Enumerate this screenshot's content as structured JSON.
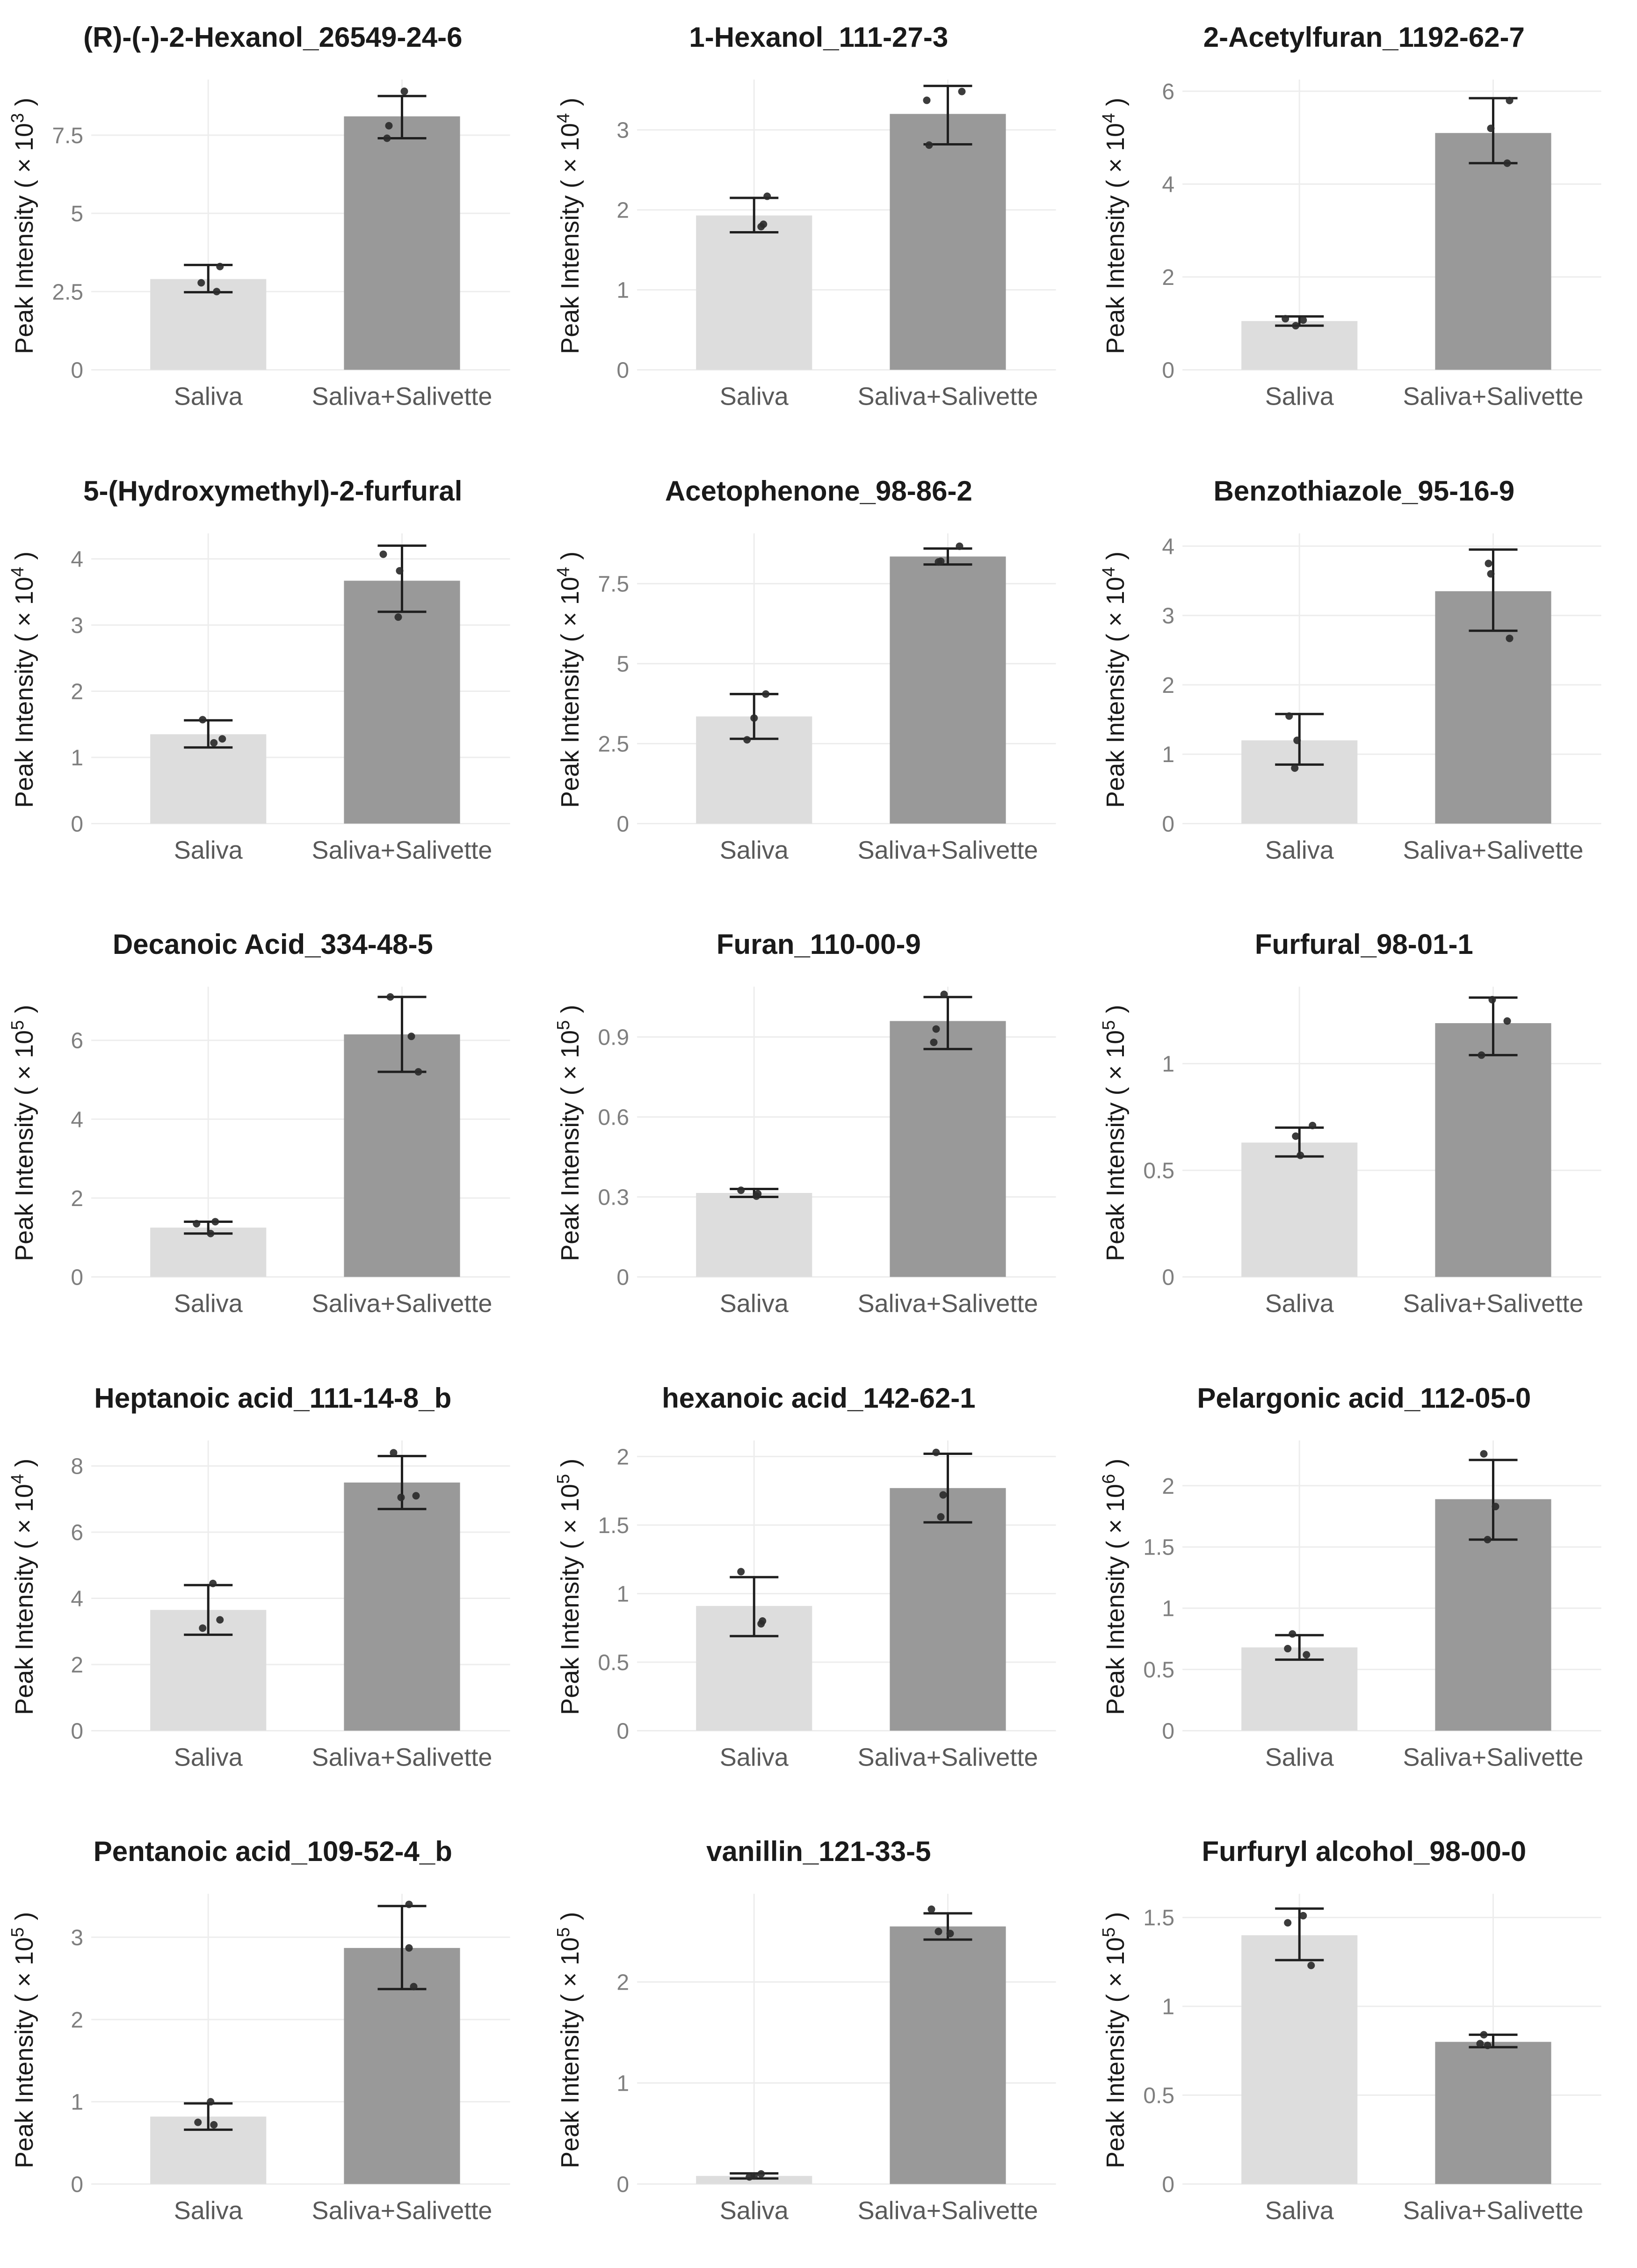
{
  "page": {
    "background": "#ffffff"
  },
  "style": {
    "bar_light": "#dddddd",
    "bar_dark": "#999999",
    "gridline": "#ededed",
    "tick_text": "#7f7f7f",
    "xlabel_text": "#595959",
    "title_text": "#1a1a1a",
    "error_color": "#1f1f1f",
    "point_color": "#2b2b2b"
  },
  "ylabel_prefix": "Peak Intensity ( × 10",
  "ylabel_suffix": " )",
  "chart_data": [
    {
      "type": "bar",
      "title": "(R)-(-)-2-Hexanol_26549-24-6",
      "exponent": "3",
      "ylim": [
        0,
        9.2
      ],
      "yticks": [
        0,
        2.5,
        5,
        7.5
      ],
      "ytick_labels": [
        "0",
        "2.5",
        "5",
        "7.5"
      ],
      "categories": [
        "Saliva",
        "Saliva+Salivette"
      ],
      "series": [
        {
          "name": "Saliva",
          "mean": 2.9,
          "err": [
            2.48,
            3.35
          ],
          "points": [
            [
              -15,
              2.78
            ],
            [
              25,
              3.3
            ],
            [
              18,
              2.5
            ]
          ]
        },
        {
          "name": "Saliva+Salivette",
          "mean": 8.1,
          "err": [
            7.4,
            8.75
          ],
          "points": [
            [
              5,
              8.9
            ],
            [
              -28,
              7.8
            ],
            [
              -32,
              7.4
            ]
          ]
        }
      ]
    },
    {
      "type": "bar",
      "title": "1-Hexanol_111-27-3",
      "exponent": "4",
      "ylim": [
        0,
        3.6
      ],
      "yticks": [
        0,
        1,
        2,
        3
      ],
      "ytick_labels": [
        "0",
        "1",
        "2",
        "3"
      ],
      "categories": [
        "Saliva",
        "Saliva+Salivette"
      ],
      "series": [
        {
          "name": "Saliva",
          "mean": 1.93,
          "err": [
            1.72,
            2.15
          ],
          "points": [
            [
              28,
              2.17
            ],
            [
              20,
              1.82
            ],
            [
              15,
              1.79
            ]
          ]
        },
        {
          "name": "Saliva+Salivette",
          "mean": 3.2,
          "err": [
            2.82,
            3.55
          ],
          "points": [
            [
              -45,
              3.37
            ],
            [
              30,
              3.48
            ],
            [
              -40,
              2.81
            ]
          ]
        }
      ]
    },
    {
      "type": "bar",
      "title": "2-Acetylfuran_1192-62-7",
      "exponent": "4",
      "ylim": [
        0,
        6.2
      ],
      "yticks": [
        0,
        2,
        4,
        6
      ],
      "ytick_labels": [
        "0",
        "2",
        "4",
        "6"
      ],
      "categories": [
        "Saliva",
        "Saliva+Salivette"
      ],
      "series": [
        {
          "name": "Saliva",
          "mean": 1.05,
          "err": [
            0.95,
            1.15
          ],
          "points": [
            [
              -30,
              1.1
            ],
            [
              8,
              1.07
            ],
            [
              -8,
              0.95
            ]
          ]
        },
        {
          "name": "Saliva+Salivette",
          "mean": 5.1,
          "err": [
            4.45,
            5.85
          ],
          "points": [
            [
              35,
              5.8
            ],
            [
              -5,
              5.2
            ],
            [
              30,
              4.45
            ]
          ]
        }
      ]
    },
    {
      "type": "bar",
      "title": "5-(Hydroxymethyl)-2-furfural",
      "exponent": "4",
      "ylim": [
        0,
        4.35
      ],
      "yticks": [
        0,
        1,
        2,
        3,
        4
      ],
      "ytick_labels": [
        "0",
        "1",
        "2",
        "3",
        "4"
      ],
      "categories": [
        "Saliva",
        "Saliva+Salivette"
      ],
      "series": [
        {
          "name": "Saliva",
          "mean": 1.35,
          "err": [
            1.15,
            1.56
          ],
          "points": [
            [
              -12,
              1.57
            ],
            [
              12,
              1.22
            ],
            [
              30,
              1.28
            ]
          ]
        },
        {
          "name": "Saliva+Salivette",
          "mean": 3.67,
          "err": [
            3.2,
            4.2
          ],
          "points": [
            [
              -40,
              4.07
            ],
            [
              -5,
              3.82
            ],
            [
              -8,
              3.12
            ]
          ]
        }
      ]
    },
    {
      "type": "bar",
      "title": "Acetophenone_98-86-2",
      "exponent": "4",
      "ylim": [
        0,
        9.0
      ],
      "yticks": [
        0,
        2.5,
        5,
        7.5
      ],
      "ytick_labels": [
        "0",
        "2.5",
        "5",
        "7.5"
      ],
      "categories": [
        "Saliva",
        "Saliva+Salivette"
      ],
      "series": [
        {
          "name": "Saliva",
          "mean": 3.35,
          "err": [
            2.65,
            4.05
          ],
          "points": [
            [
              25,
              4.05
            ],
            [
              0,
              3.3
            ],
            [
              -15,
              2.62
            ]
          ]
        },
        {
          "name": "Saliva+Salivette",
          "mean": 8.35,
          "err": [
            8.1,
            8.6
          ],
          "points": [
            [
              25,
              8.67
            ],
            [
              -15,
              8.2
            ],
            [
              -20,
              8.18
            ]
          ]
        }
      ]
    },
    {
      "type": "bar",
      "title": "Benzothiazole_95-16-9",
      "exponent": "4",
      "ylim": [
        0,
        4.15
      ],
      "yticks": [
        0,
        1,
        2,
        3,
        4
      ],
      "ytick_labels": [
        "0",
        "1",
        "2",
        "3",
        "4"
      ],
      "categories": [
        "Saliva",
        "Saliva+Salivette"
      ],
      "series": [
        {
          "name": "Saliva",
          "mean": 1.2,
          "err": [
            0.85,
            1.58
          ],
          "points": [
            [
              -22,
              1.55
            ],
            [
              -5,
              1.2
            ],
            [
              -10,
              0.8
            ]
          ]
        },
        {
          "name": "Saliva+Salivette",
          "mean": 3.35,
          "err": [
            2.78,
            3.95
          ],
          "points": [
            [
              -10,
              3.75
            ],
            [
              -5,
              3.6
            ],
            [
              35,
              2.67
            ]
          ]
        }
      ]
    },
    {
      "type": "bar",
      "title": "Decanoic Acid_334-48-5",
      "exponent": "5",
      "ylim": [
        0,
        7.3
      ],
      "yticks": [
        0,
        2,
        4,
        6
      ],
      "ytick_labels": [
        "0",
        "2",
        "4",
        "6"
      ],
      "categories": [
        "Saliva",
        "Saliva+Salivette"
      ],
      "series": [
        {
          "name": "Saliva",
          "mean": 1.25,
          "err": [
            1.1,
            1.4
          ],
          "points": [
            [
              -25,
              1.35
            ],
            [
              15,
              1.4
            ],
            [
              5,
              1.1
            ]
          ]
        },
        {
          "name": "Saliva+Salivette",
          "mean": 6.15,
          "err": [
            5.2,
            7.1
          ],
          "points": [
            [
              -25,
              7.1
            ],
            [
              20,
              6.1
            ],
            [
              35,
              5.2
            ]
          ]
        }
      ]
    },
    {
      "type": "bar",
      "title": "Furan_110-00-9",
      "exponent": "5",
      "ylim": [
        0,
        1.08
      ],
      "yticks": [
        0,
        0.3,
        0.6,
        0.9
      ],
      "ytick_labels": [
        "0",
        "0.3",
        "0.6",
        "0.9"
      ],
      "categories": [
        "Saliva",
        "Saliva+Salivette"
      ],
      "series": [
        {
          "name": "Saliva",
          "mean": 0.315,
          "err": [
            0.3,
            0.33
          ],
          "points": [
            [
              -28,
              0.325
            ],
            [
              8,
              0.312
            ],
            [
              5,
              0.303
            ]
          ]
        },
        {
          "name": "Saliva+Salivette",
          "mean": 0.96,
          "err": [
            0.855,
            1.05
          ],
          "points": [
            [
              -8,
              1.06
            ],
            [
              -25,
              0.93
            ],
            [
              -30,
              0.88
            ]
          ]
        }
      ]
    },
    {
      "type": "bar",
      "title": "Furfural_98-01-1",
      "exponent": "5",
      "ylim": [
        0,
        1.35
      ],
      "yticks": [
        0,
        0.5,
        1
      ],
      "ytick_labels": [
        "0",
        "0.5",
        "1"
      ],
      "categories": [
        "Saliva",
        "Saliva+Salivette"
      ],
      "series": [
        {
          "name": "Saliva",
          "mean": 0.63,
          "err": [
            0.565,
            0.7
          ],
          "points": [
            [
              28,
              0.71
            ],
            [
              -8,
              0.66
            ],
            [
              2,
              0.57
            ]
          ]
        },
        {
          "name": "Saliva+Salivette",
          "mean": 1.19,
          "err": [
            1.04,
            1.31
          ],
          "points": [
            [
              -2,
              1.3
            ],
            [
              30,
              1.2
            ],
            [
              -25,
              1.04
            ]
          ]
        }
      ]
    },
    {
      "type": "bar",
      "title": "Heptanoic acid_111-14-8_b",
      "exponent": "4",
      "ylim": [
        0,
        8.7
      ],
      "yticks": [
        0,
        2,
        4,
        6,
        8
      ],
      "ytick_labels": [
        "0",
        "2",
        "4",
        "6",
        "8"
      ],
      "categories": [
        "Saliva",
        "Saliva+Salivette"
      ],
      "series": [
        {
          "name": "Saliva",
          "mean": 3.65,
          "err": [
            2.9,
            4.4
          ],
          "points": [
            [
              10,
              4.45
            ],
            [
              25,
              3.35
            ],
            [
              -12,
              3.1
            ]
          ]
        },
        {
          "name": "Saliva+Salivette",
          "mean": 7.5,
          "err": [
            6.7,
            8.3
          ],
          "points": [
            [
              -18,
              8.4
            ],
            [
              -2,
              7.05
            ],
            [
              30,
              7.1
            ]
          ]
        }
      ]
    },
    {
      "type": "bar",
      "title": "hexanoic acid_142-62-1",
      "exponent": "5",
      "ylim": [
        0,
        2.1
      ],
      "yticks": [
        0,
        0.5,
        1,
        1.5,
        2
      ],
      "ytick_labels": [
        "0",
        "0.5",
        "1",
        "1.5",
        "2"
      ],
      "categories": [
        "Saliva",
        "Saliva+Salivette"
      ],
      "series": [
        {
          "name": "Saliva",
          "mean": 0.91,
          "err": [
            0.69,
            1.12
          ],
          "points": [
            [
              -28,
              1.16
            ],
            [
              18,
              0.8
            ],
            [
              15,
              0.78
            ]
          ]
        },
        {
          "name": "Saliva+Salivette",
          "mean": 1.77,
          "err": [
            1.52,
            2.02
          ],
          "points": [
            [
              -25,
              2.03
            ],
            [
              -10,
              1.72
            ],
            [
              -15,
              1.56
            ]
          ]
        }
      ]
    },
    {
      "type": "bar",
      "title": "Pelargonic acid_112-05-0",
      "exponent": "6",
      "ylim": [
        0,
        2.35
      ],
      "yticks": [
        0,
        0.5,
        1,
        1.5,
        2
      ],
      "ytick_labels": [
        "0",
        "0.5",
        "1",
        "1.5",
        "2"
      ],
      "categories": [
        "Saliva",
        "Saliva+Salivette"
      ],
      "series": [
        {
          "name": "Saliva",
          "mean": 0.68,
          "err": [
            0.58,
            0.78
          ],
          "points": [
            [
              -15,
              0.79
            ],
            [
              -25,
              0.67
            ],
            [
              15,
              0.62
            ]
          ]
        },
        {
          "name": "Saliva+Salivette",
          "mean": 1.89,
          "err": [
            1.56,
            2.21
          ],
          "points": [
            [
              -20,
              2.26
            ],
            [
              5,
              1.83
            ],
            [
              -12,
              1.56
            ]
          ]
        }
      ]
    },
    {
      "type": "bar",
      "title": "Pentanoic acid_109-52-4_b",
      "exponent": "5",
      "ylim": [
        0,
        3.5
      ],
      "yticks": [
        0,
        1,
        2,
        3
      ],
      "ytick_labels": [
        "0",
        "1",
        "2",
        "3"
      ],
      "categories": [
        "Saliva",
        "Saliva+Salivette"
      ],
      "series": [
        {
          "name": "Saliva",
          "mean": 0.82,
          "err": [
            0.66,
            0.98
          ],
          "points": [
            [
              5,
              1.0
            ],
            [
              -22,
              0.75
            ],
            [
              12,
              0.72
            ]
          ]
        },
        {
          "name": "Saliva+Salivette",
          "mean": 2.87,
          "err": [
            2.37,
            3.38
          ],
          "points": [
            [
              15,
              3.4
            ],
            [
              15,
              2.87
            ],
            [
              25,
              2.4
            ]
          ]
        }
      ]
    },
    {
      "type": "bar",
      "title": "vanillin_121-33-5",
      "exponent": "5",
      "ylim": [
        0,
        2.85
      ],
      "yticks": [
        0,
        1,
        2
      ],
      "ytick_labels": [
        "0",
        "1",
        "2"
      ],
      "categories": [
        "Saliva",
        "Saliva+Salivette"
      ],
      "series": [
        {
          "name": "Saliva",
          "mean": 0.08,
          "err": [
            0.055,
            0.105
          ],
          "points": [
            [
              -10,
              0.07
            ],
            [
              0,
              0.08
            ],
            [
              15,
              0.1
            ]
          ]
        },
        {
          "name": "Saliva+Salivette",
          "mean": 2.55,
          "err": [
            2.42,
            2.68
          ],
          "points": [
            [
              -35,
              2.72
            ],
            [
              -20,
              2.5
            ],
            [
              5,
              2.48
            ]
          ]
        }
      ]
    },
    {
      "type": "bar",
      "title": "Furfuryl alcohol_98-00-0",
      "exponent": "5",
      "ylim": [
        0,
        1.62
      ],
      "yticks": [
        0,
        0.5,
        1,
        1.5
      ],
      "ytick_labels": [
        "0",
        "0.5",
        "1",
        "1.5"
      ],
      "categories": [
        "Saliva",
        "Saliva+Salivette"
      ],
      "series": [
        {
          "name": "Saliva",
          "mean": 1.4,
          "err": [
            1.26,
            1.55
          ],
          "points": [
            [
              -25,
              1.47
            ],
            [
              8,
              1.51
            ],
            [
              25,
              1.23
            ]
          ]
        },
        {
          "name": "Saliva+Salivette",
          "mean": 0.8,
          "err": [
            0.77,
            0.84
          ],
          "points": [
            [
              -20,
              0.84
            ],
            [
              -28,
              0.79
            ],
            [
              -12,
              0.78
            ]
          ]
        }
      ]
    }
  ]
}
